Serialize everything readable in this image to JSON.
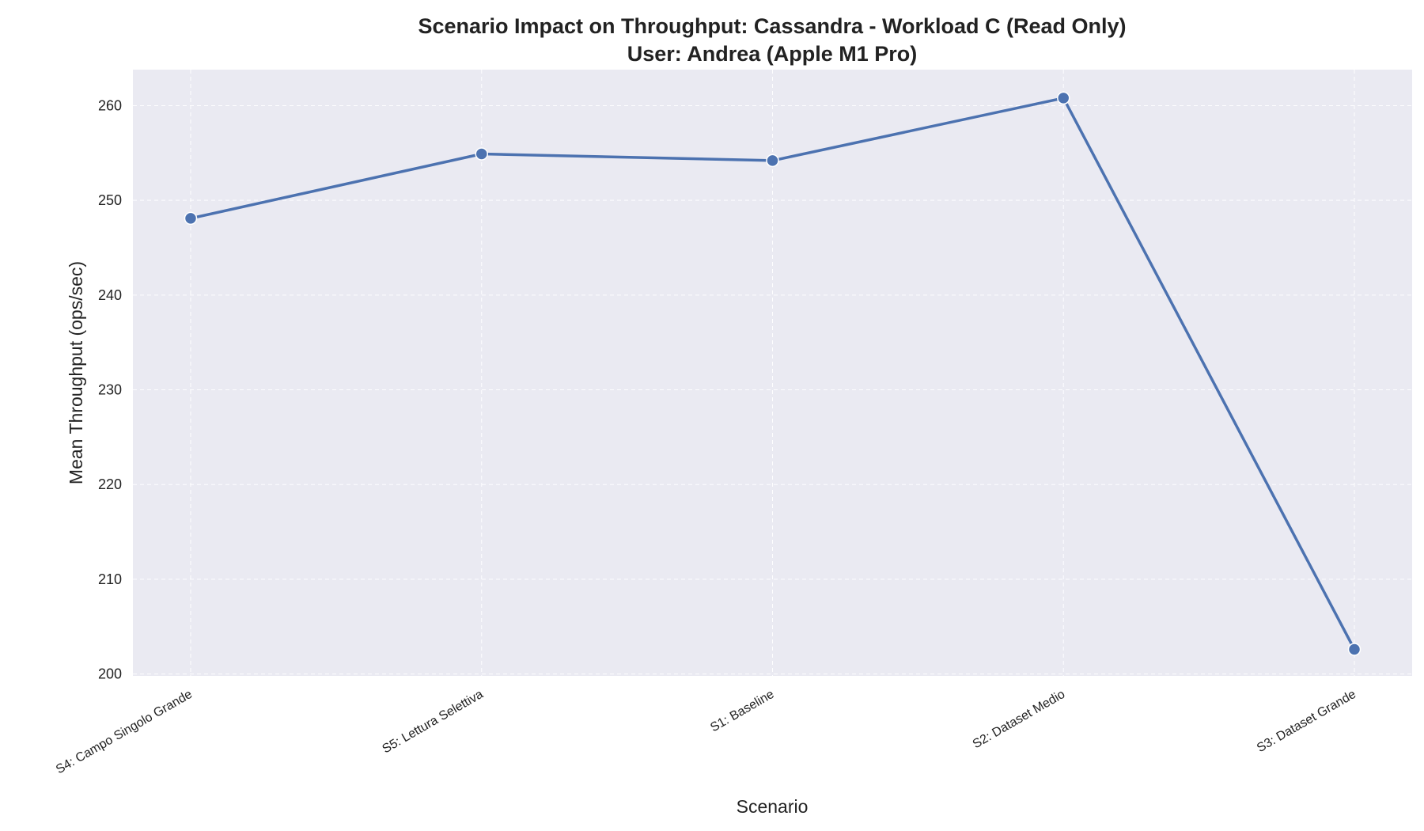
{
  "chart_data": {
    "type": "line",
    "title_line1": "Scenario Impact on Throughput: Cassandra - Workload C (Read Only)",
    "title_line2": "User: Andrea (Apple M1 Pro)",
    "xlabel": "Scenario",
    "ylabel": "Mean Throughput (ops/sec)",
    "categories": [
      "S4: Campo Singolo Grande",
      "S5: Lettura Selettiva",
      "S1: Baseline",
      "S2: Dataset Medio",
      "S3: Dataset Grande"
    ],
    "values": [
      248.1,
      254.9,
      254.2,
      260.8,
      202.6
    ],
    "ylim": [
      199.8,
      263.8
    ],
    "yticks": [
      200,
      210,
      220,
      230,
      240,
      250,
      260
    ],
    "grid": true,
    "colors": {
      "line": "#4c72b0",
      "background": "#eaeaf2",
      "grid": "#ffffff"
    }
  }
}
